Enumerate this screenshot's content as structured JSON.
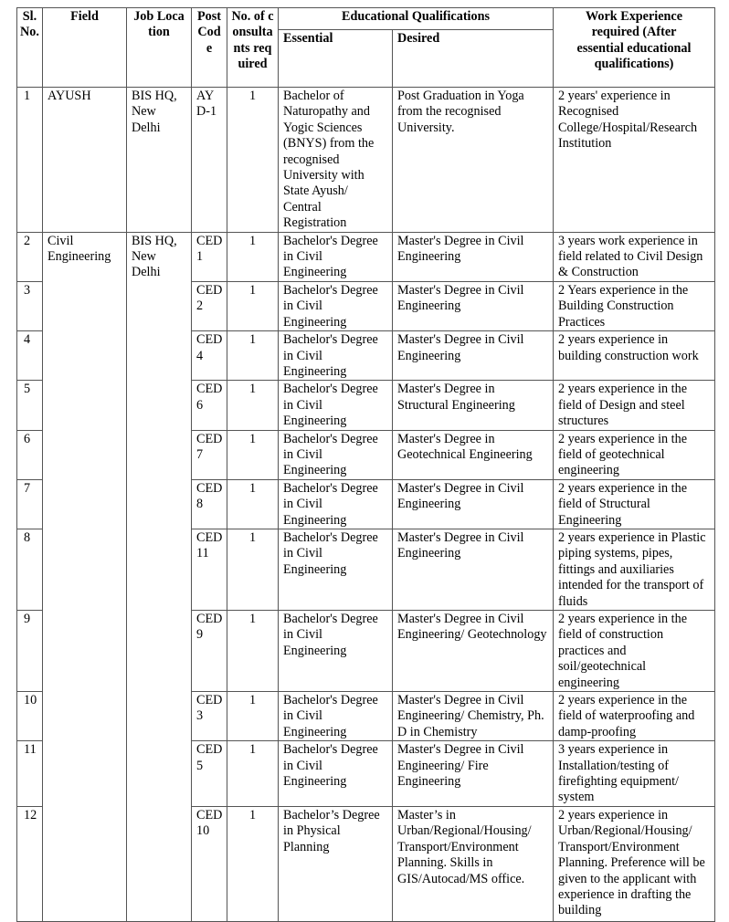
{
  "headers": {
    "sl_no": "Sl. No.",
    "field": "Field",
    "job_location": "Job Location",
    "post_code": "Post Code",
    "num_consultants": "No. of consultants required",
    "educational_qualifications": "Educational Qualifications",
    "essential": "Essential",
    "desired": "Desired",
    "work_experience": "Work Experience required (After essential educational qualifications)"
  },
  "rows": [
    {
      "sl": "1",
      "field": "AYUSH",
      "location": "BIS HQ, New Delhi",
      "code": "AYD-1",
      "count": "1",
      "essential": "Bachelor of Naturopathy and Yogic Sciences (BNYS) from the recognised University with State Ayush/ Central Registration",
      "desired": "Post Graduation in Yoga from the recognised University.",
      "experience": "2 years' experience in Recognised College/Hospital/Research Institution"
    },
    {
      "sl": "2",
      "field": "Civil Engineering",
      "location": "BIS HQ, New Delhi",
      "code": "CED 1",
      "count": "1",
      "essential": "Bachelor's Degree in Civil Engineering",
      "desired": "Master's Degree in Civil Engineering",
      "experience": "3 years work experience in field related to Civil Design & Construction"
    },
    {
      "sl": "3",
      "code": "CED 2",
      "count": "1",
      "essential": "Bachelor's Degree in Civil Engineering",
      "desired": "Master's Degree in Civil Engineering",
      "experience": "2 Years experience in the Building Construction Practices"
    },
    {
      "sl": "4",
      "code": "CED 4",
      "count": "1",
      "essential": "Bachelor's Degree in Civil Engineering",
      "desired": "Master's Degree in Civil Engineering",
      "experience": "2 years experience in building construction work"
    },
    {
      "sl": "5",
      "code": "CED 6",
      "count": "1",
      "essential": "Bachelor's Degree in Civil Engineering",
      "desired": "Master's Degree in Structural Engineering",
      "experience": "2 years experience in the field of Design and steel structures"
    },
    {
      "sl": "6",
      "code": "CED 7",
      "count": "1",
      "essential": "Bachelor's Degree in Civil Engineering",
      "desired": "Master's Degree in Geotechnical Engineering",
      "experience": "2 years experience in the field of geotechnical engineering"
    },
    {
      "sl": "7",
      "code": "CED 8",
      "count": "1",
      "essential": "Bachelor's Degree in Civil Engineering",
      "desired": "Master's Degree in Civil Engineering",
      "experience": "2 years experience in the field of Structural Engineering"
    },
    {
      "sl": "8",
      "code": "CED 11",
      "count": "1",
      "essential": "Bachelor's Degree in Civil Engineering",
      "desired": "Master's Degree in Civil Engineering",
      "experience": "2 years experience in Plastic piping systems, pipes, fittings and auxiliaries intended for the transport of fluids"
    },
    {
      "sl": "9",
      "code": "CED 9",
      "count": "1",
      "essential": "Bachelor's Degree in Civil Engineering",
      "desired": "Master's Degree in Civil Engineering/ Geotechnology",
      "experience": "2 years experience in the field of construction practices and soil/geotechnical engineering"
    },
    {
      "sl": "10",
      "code": "CED 3",
      "count": "1",
      "essential": "Bachelor's Degree in Civil Engineering",
      "desired": "Master's Degree in Civil Engineering/ Chemistry, Ph. D in Chemistry",
      "experience": "2 years experience in the field of waterproofing and damp-proofing"
    },
    {
      "sl": "11",
      "code": "CED 5",
      "count": "1",
      "essential": "Bachelor's Degree in Civil Engineering",
      "desired": "Master's Degree in Civil Engineering/ Fire Engineering",
      "experience": "3 years experience in Installation/testing of firefighting equipment/ system"
    },
    {
      "sl": "12",
      "code": "CED 10",
      "count": "1",
      "essential": "Bachelor’s Degree in Physical Planning",
      "desired": "Master’s in Urban/Regional/Housing/ Transport/Environment Planning. Skills in GIS/Autocad/MS office.",
      "experience": "2 years experience in Urban/Regional/Housing/ Transport/Environment Planning. Preference will be given to the applicant with experience in drafting the building"
    }
  ]
}
